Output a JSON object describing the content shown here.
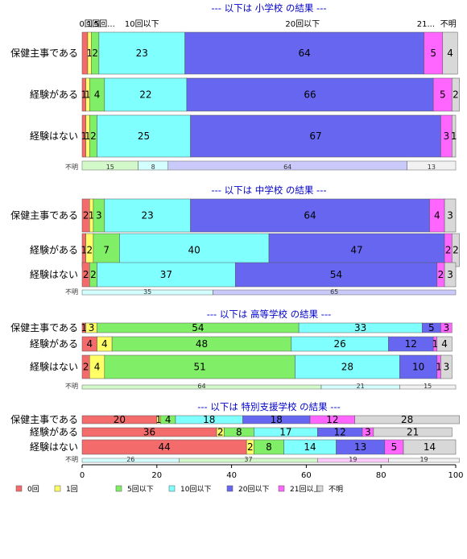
{
  "chart_data": {
    "type": "bar",
    "stacked": true,
    "orientation": "horizontal",
    "categories": [
      "0回",
      "1回",
      "5回以下",
      "10回以下",
      "20回以下",
      "21回以上",
      "不明"
    ],
    "colors": [
      "#f46b6b",
      "#ffff66",
      "#80ee66",
      "#80ffff",
      "#6666f0",
      "#ff66ff",
      "#d8d8d8"
    ],
    "top_labels": [
      "0回",
      "1回",
      "5回...",
      "10回以下",
      "20回以下",
      "21...",
      "不明"
    ],
    "xlim": [
      0,
      100
    ],
    "xticks": [
      "0",
      "20",
      "40",
      "60",
      "80",
      "100"
    ],
    "unknown_label": "不明",
    "panels": [
      {
        "title": "--- 以下は 小学校 の結果 ---",
        "rows": [
          {
            "label": "保健主事である",
            "values": [
              1.5,
              1,
              2,
              23,
              64,
              5,
              4
            ],
            "labels": [
              "",
              "1",
              "2",
              "23",
              "64",
              "5",
              "4"
            ]
          },
          {
            "label": "経験がある",
            "values": [
              1,
              1,
              4,
              22,
              66,
              5,
              2
            ],
            "labels": [
              "1",
              "1",
              "4",
              "22",
              "66",
              "5",
              "2"
            ]
          },
          {
            "label": "経験はない",
            "values": [
              1,
              1,
              2,
              25,
              67,
              3,
              1
            ],
            "labels": [
              "1",
              "1",
              "2",
              "25",
              "67",
              "3",
              "1"
            ]
          }
        ],
        "unknown": {
          "values": [
            15,
            8,
            64,
            13
          ],
          "colors": [
            "#80ee66",
            "#80ffff",
            "#6666f0",
            "#d8d8d8"
          ]
        }
      },
      {
        "title": "--- 以下は 中学校 の結果 ---",
        "rows": [
          {
            "label": "保健主事である",
            "values": [
              2,
              1,
              3,
              23,
              64,
              4,
              3
            ],
            "labels": [
              "2",
              "1",
              "3",
              "23",
              "64",
              "4",
              "3"
            ]
          },
          {
            "label": "経験がある",
            "values": [
              1,
              2,
              7,
              40,
              47,
              2,
              2
            ],
            "labels": [
              "1",
              "2",
              "7",
              "40",
              "47",
              "2",
              "2"
            ]
          },
          {
            "label": "経験はない",
            "values": [
              2,
              0,
              2,
              37,
              54,
              2,
              3
            ],
            "labels": [
              "2",
              "",
              "2",
              "37",
              "54",
              "2",
              "3"
            ]
          }
        ],
        "unknown": {
          "values": [
            35,
            65
          ],
          "colors": [
            "#80ffff",
            "#6666f0"
          ]
        }
      },
      {
        "title": "--- 以下は 高等学校 の結果 ---",
        "rows": [
          {
            "label": "保健主事である",
            "values": [
              1,
              3,
              54,
              33,
              5,
              3,
              0
            ],
            "labels": [
              "1",
              "3",
              "54",
              "33",
              "5",
              "3",
              ""
            ],
            "colorIndex": [
              0,
              1,
              2,
              3,
              4,
              5,
              6
            ]
          },
          {
            "label": "経験がある",
            "values": [
              4,
              4,
              48,
              26,
              12,
              1,
              4
            ],
            "labels": [
              "4",
              "4",
              "48",
              "26",
              "12",
              "1",
              "4"
            ]
          },
          {
            "label": "経験はない",
            "values": [
              2,
              4,
              51,
              28,
              10,
              1,
              3
            ],
            "labels": [
              "2",
              "4",
              "51",
              "28",
              "10",
              "1",
              "3"
            ]
          }
        ],
        "unknown": {
          "values": [
            64,
            21,
            15
          ],
          "colors": [
            "#80ee66",
            "#80ffff",
            "#d8d8d8"
          ]
        }
      },
      {
        "title": "--- 以下は 特別支援学校 の結果 ---",
        "rows": [
          {
            "label": "保健主事である",
            "values": [
              20,
              1,
              4,
              18,
              18,
              12,
              28
            ],
            "labels": [
              "20",
              "1",
              "4",
              "18",
              "18",
              "12",
              "28"
            ]
          },
          {
            "label": "経験がある",
            "values": [
              36,
              2,
              8,
              17,
              12,
              3,
              21
            ],
            "labels": [
              "36",
              "2",
              "8",
              "17",
              "12",
              "3",
              "21"
            ]
          },
          {
            "label": "経験はない",
            "values": [
              44,
              2,
              8,
              14,
              13,
              5,
              14
            ],
            "labels": [
              "44",
              "2",
              "8",
              "14",
              "13",
              "5",
              "14"
            ]
          }
        ],
        "unknown": {
          "values": [
            26,
            37,
            19,
            19
          ],
          "colors": [
            "#80ffff",
            "#80ee66",
            "#ff66ff",
            "#d8d8d8"
          ]
        }
      }
    ]
  }
}
